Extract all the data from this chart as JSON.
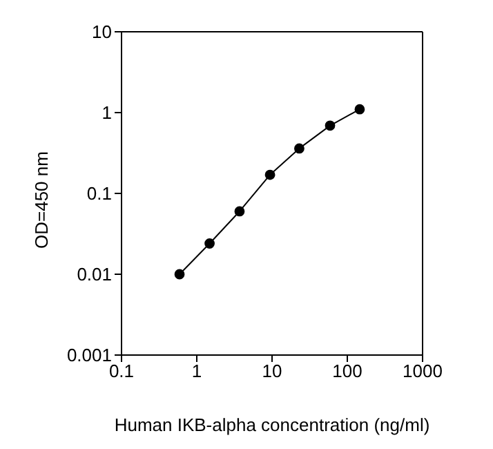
{
  "chart_data": {
    "type": "line",
    "xlabel": "Human IKB-alpha concentration (ng/ml)",
    "ylabel": "OD=450 nm",
    "log": "xy",
    "marker": "circle",
    "line_style": "solid",
    "grid": false,
    "legend": false,
    "x": [
      0.59,
      1.48,
      3.7,
      9.4,
      23,
      59,
      146
    ],
    "series": [
      {
        "color": "#000000",
        "values": [
          0.01,
          0.024,
          0.06,
          0.17,
          0.36,
          0.69,
          1.1
        ]
      }
    ],
    "xlim": [
      0.1,
      1000
    ],
    "xticks": [
      0.1,
      1,
      10,
      100,
      1000
    ],
    "ylim": [
      0.001,
      10
    ],
    "yticks": [
      0.001,
      0.01,
      0.1,
      1,
      10
    ]
  }
}
